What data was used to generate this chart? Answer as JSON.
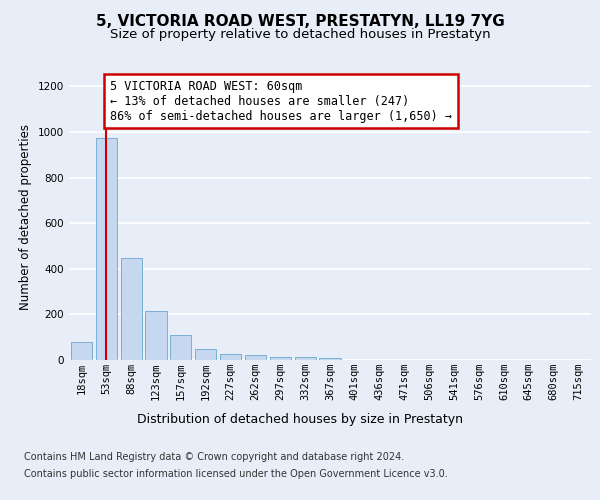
{
  "title": "5, VICTORIA ROAD WEST, PRESTATYN, LL19 7YG",
  "subtitle": "Size of property relative to detached houses in Prestatyn",
  "xlabel": "Distribution of detached houses by size in Prestatyn",
  "ylabel": "Number of detached properties",
  "categories": [
    "18sqm",
    "53sqm",
    "88sqm",
    "123sqm",
    "157sqm",
    "192sqm",
    "227sqm",
    "262sqm",
    "297sqm",
    "332sqm",
    "367sqm",
    "401sqm",
    "436sqm",
    "471sqm",
    "506sqm",
    "541sqm",
    "576sqm",
    "610sqm",
    "645sqm",
    "680sqm",
    "715sqm"
  ],
  "values": [
    80,
    975,
    448,
    215,
    110,
    48,
    25,
    20,
    15,
    12,
    8,
    0,
    0,
    0,
    0,
    0,
    0,
    0,
    0,
    0,
    0
  ],
  "bar_color": "#c5d8ef",
  "bar_edge_color": "#7aafd4",
  "property_line_x": 1.0,
  "property_line_color": "#cc0000",
  "annotation_text": "5 VICTORIA ROAD WEST: 60sqm\n← 13% of detached houses are smaller (247)\n86% of semi-detached houses are larger (1,650) →",
  "annotation_box_facecolor": "#ffffff",
  "annotation_box_edgecolor": "#cc0000",
  "ylim": [
    0,
    1250
  ],
  "yticks": [
    0,
    200,
    400,
    600,
    800,
    1000,
    1200
  ],
  "footer_line1": "Contains HM Land Registry data © Crown copyright and database right 2024.",
  "footer_line2": "Contains public sector information licensed under the Open Government Licence v3.0.",
  "fig_facecolor": "#e8eef7",
  "plot_facecolor": "#e8eef7",
  "grid_color": "#ffffff",
  "title_fontsize": 11,
  "subtitle_fontsize": 9.5,
  "tick_fontsize": 7.5,
  "ylabel_fontsize": 8.5,
  "xlabel_fontsize": 9,
  "footer_fontsize": 7,
  "annotation_fontsize": 8.5
}
